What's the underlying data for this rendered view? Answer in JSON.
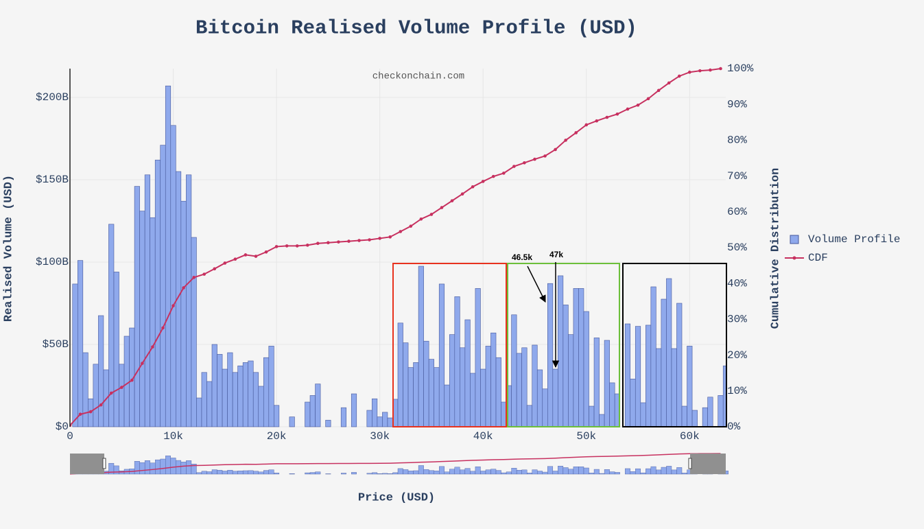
{
  "chart_data": {
    "type": "bar",
    "title": "Bitcoin Realised Volume Profile (USD)",
    "watermark": "checkonchain.com",
    "x_label": "Price (USD)",
    "y_label": "Realised Volume (USD)",
    "y2_label": "Cumulative Distribution",
    "xlim": [
      0,
      63500
    ],
    "ylim": [
      0,
      217500000000.0
    ],
    "y2lim": [
      0,
      100
    ],
    "xticks": [
      0,
      {
        "value": 10000,
        "label": "10k"
      },
      {
        "value": 20000,
        "label": "20k"
      },
      {
        "value": 30000,
        "label": "30k"
      },
      {
        "value": 40000,
        "label": "40k"
      },
      {
        "value": 50000,
        "label": "50k"
      },
      {
        "value": 60000,
        "label": "60k"
      }
    ],
    "yticks": [
      {
        "value": 0,
        "label": "$0"
      },
      {
        "value": 50000000000.0,
        "label": "$50B"
      },
      {
        "value": 100000000000.0,
        "label": "$100B"
      },
      {
        "value": 150000000000.0,
        "label": "$150B"
      },
      {
        "value": 200000000000.0,
        "label": "$200B"
      }
    ],
    "y2ticks": [
      {
        "value": 0,
        "label": "0%"
      },
      {
        "value": 10,
        "label": "10%"
      },
      {
        "value": 20,
        "label": "20%"
      },
      {
        "value": 30,
        "label": "30%"
      },
      {
        "value": 40,
        "label": "40%"
      },
      {
        "value": 50,
        "label": "50%"
      },
      {
        "value": 60,
        "label": "60%"
      },
      {
        "value": 70,
        "label": "70%"
      },
      {
        "value": 80,
        "label": "80%"
      },
      {
        "value": 90,
        "label": "90%"
      },
      {
        "value": 100,
        "label": "100%"
      }
    ],
    "grid": true,
    "legend": "right",
    "annotations": [
      {
        "text": "46.5k"
      },
      {
        "text": "47k"
      }
    ],
    "series": [
      {
        "name": "Volume Profile",
        "type": "bar",
        "color": "#8fa9ec",
        "edge_color": "#46589a",
        "x": [
          500,
          1000,
          1500,
          2000,
          2500,
          3000,
          3500,
          4000,
          4500,
          5000,
          5500,
          6000,
          6500,
          7000,
          7500,
          8000,
          8500,
          9000,
          9500,
          10000,
          10500,
          11000,
          11500,
          12000,
          12500,
          13000,
          13500,
          14000,
          14500,
          15000,
          15500,
          16000,
          16500,
          17000,
          17500,
          18000,
          18500,
          19000,
          19500,
          20000,
          20500,
          21000,
          21500,
          22000,
          22500,
          23000,
          23500,
          24000,
          24500,
          25000,
          25500,
          26000,
          26500,
          27000,
          27500,
          28000,
          28500,
          29000,
          29500,
          30000,
          30500,
          31000,
          31500,
          32000,
          32500,
          33000,
          33500,
          34000,
          34500,
          35000,
          35500,
          36000,
          36500,
          37000,
          37500,
          38000,
          38500,
          39000,
          39500,
          40000,
          40500,
          41000,
          41500,
          42000,
          42500,
          43000,
          43500,
          44000,
          44500,
          45000,
          45500,
          46000,
          46500,
          47000,
          47500,
          48000,
          48500,
          49000,
          49500,
          50000,
          50500,
          51000,
          51500,
          52000,
          52500,
          53000,
          53500,
          54000,
          54500,
          55000,
          55500,
          56000,
          56500,
          57000,
          57500,
          58000,
          58500,
          59000,
          59500,
          60000,
          60500,
          61000,
          61500,
          62000,
          62500,
          63000,
          63500
        ],
        "values": [
          86700000000.0,
          101000000000.0,
          45000000000.0,
          17000000000.0,
          38000000000.0,
          67500000000.0,
          34600000000.0,
          123000000000.0,
          94000000000.0,
          38000000000.0,
          55000000000.0,
          60000000000.0,
          146000000000.0,
          131000000000.0,
          153000000000.0,
          127000000000.0,
          162000000000.0,
          171000000000.0,
          207000000000.0,
          183000000000.0,
          155000000000.0,
          137000000000.0,
          153000000000.0,
          115000000000.0,
          17500000000.0,
          33000000000.0,
          27500000000.0,
          50000000000.0,
          44000000000.0,
          35000000000.0,
          45000000000.0,
          33000000000.0,
          37000000000.0,
          39000000000.0,
          40000000000.0,
          33000000000.0,
          24600000000.0,
          42000000000.0,
          49000000000.0,
          13000000000.0,
          0,
          0,
          6000000000.0,
          0,
          0,
          15000000000.0,
          19000000000.0,
          26000000000.0,
          0,
          4000000000.0,
          0,
          0,
          11600000000.0,
          0,
          20000000000.0,
          0,
          0,
          10000000000.0,
          17000000000.0,
          6000000000.0,
          8800000000.0,
          5400000000.0,
          16700000000.0,
          63000000000.0,
          51000000000.0,
          36000000000.0,
          39000000000.0,
          97500000000.0,
          52000000000.0,
          41000000000.0,
          36000000000.0,
          86700000000.0,
          25400000000.0,
          56000000000.0,
          79000000000.0,
          48000000000.0,
          65000000000.0,
          32500000000.0,
          84000000000.0,
          35000000000.0,
          49000000000.0,
          57000000000.0,
          42000000000.0,
          15000000000.0,
          25000000000.0,
          68000000000.0,
          44600000000.0,
          48000000000.0,
          13000000000.0,
          49600000000.0,
          34600000000.0,
          23000000000.0,
          87000000000.0,
          35000000000.0,
          91700000000.0,
          74000000000.0,
          56000000000.0,
          84000000000.0,
          84000000000.0,
          70000000000.0,
          12500000000.0,
          54000000000.0,
          7500000000.0,
          52500000000.0,
          26700000000.0,
          20000000000.0,
          0,
          62500000000.0,
          29000000000.0,
          61000000000.0,
          14600000000.0,
          61700000000.0,
          85000000000.0,
          47500000000.0,
          77500000000.0,
          90000000000.0,
          47500000000.0,
          75000000000.0,
          12500000000.0,
          49000000000.0,
          10000000000.0,
          0,
          11600000000.0,
          18000000000.0,
          0,
          19000000000.0,
          37000000000.0
        ]
      },
      {
        "name": "CDF",
        "type": "line",
        "axis": "y2",
        "color": "#c7305f",
        "x": [
          0,
          1000,
          2000,
          3000,
          4000,
          5000,
          6000,
          7000,
          8000,
          9000,
          10000,
          11000,
          12000,
          13000,
          14000,
          15000,
          16000,
          17000,
          18000,
          19000,
          20000,
          21000,
          22000,
          23000,
          24000,
          25000,
          26000,
          27000,
          28000,
          29000,
          30000,
          31000,
          32000,
          33000,
          34000,
          35000,
          36000,
          37000,
          38000,
          39000,
          40000,
          41000,
          42000,
          43000,
          44000,
          45000,
          46000,
          47000,
          48000,
          49000,
          50000,
          51000,
          52000,
          53000,
          54000,
          55000,
          56000,
          57000,
          58000,
          59000,
          60000,
          61000,
          62000,
          63000
        ],
        "values": [
          0.4,
          3.5,
          4.2,
          6.1,
          9.4,
          11,
          13,
          17.7,
          22.3,
          27.6,
          33.8,
          38.8,
          41.7,
          42.6,
          44.1,
          45.7,
          46.8,
          48,
          47.6,
          48.8,
          50.3,
          50.5,
          50.5,
          50.7,
          51.2,
          51.4,
          51.6,
          51.8,
          52,
          52.2,
          52.6,
          53,
          54.5,
          56,
          58,
          59.3,
          61.2,
          63.1,
          65,
          67,
          68.5,
          69.9,
          70.8,
          72.7,
          73.7,
          74.7,
          75.6,
          77.4,
          80,
          82.1,
          84.3,
          85.4,
          86.4,
          87.3,
          88.7,
          89.8,
          91.6,
          93.9,
          96,
          97.9,
          99,
          99.4,
          99.6,
          100
        ]
      }
    ]
  }
}
